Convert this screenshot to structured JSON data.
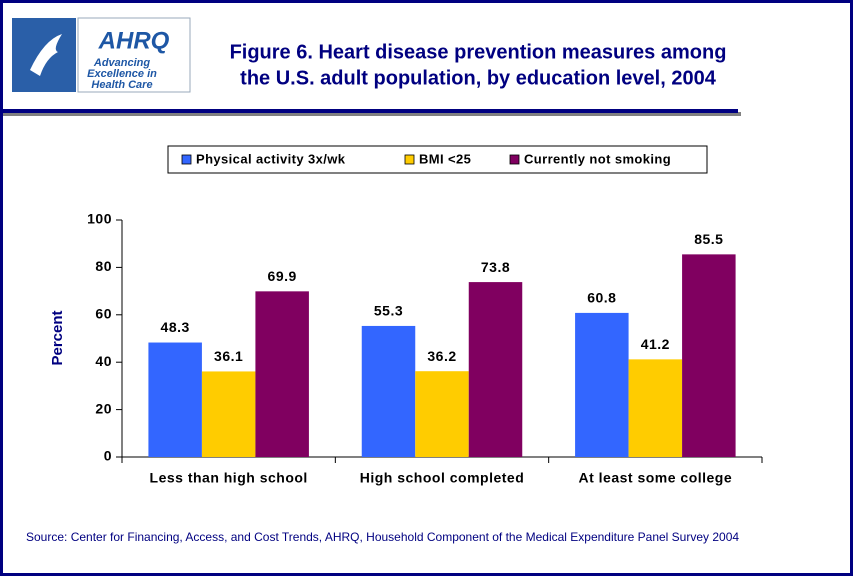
{
  "logo": {
    "name": "AHRQ",
    "tagline": [
      "Advancing",
      "Excellence in",
      "Health Care"
    ]
  },
  "chart_data": {
    "type": "bar",
    "title": [
      "Figure 6. Heart disease prevention measures among",
      "the U.S. adult population, by education level, 2004"
    ],
    "y_label": "Percent",
    "categories": [
      "Less than high school",
      "High school completed",
      "At least some college"
    ],
    "series": [
      {
        "name": "Physical activity 3x/wk",
        "color": "#3366ff",
        "values": [
          48.3,
          55.3,
          60.8
        ]
      },
      {
        "name": "BMI <25",
        "color": "#ffcc00",
        "values": [
          36.1,
          36.2,
          41.2
        ]
      },
      {
        "name": "Currently not smoking",
        "color": "#800060",
        "values": [
          69.9,
          73.8,
          85.5
        ]
      }
    ],
    "ylim": [
      0,
      100
    ],
    "yticks": [
      0,
      20,
      40,
      60,
      80,
      100
    ],
    "legend": "top",
    "source": "Source: Center for Financing, Access, and Cost Trends, AHRQ, Household Component of the Medical Expenditure Panel Survey 2004"
  }
}
